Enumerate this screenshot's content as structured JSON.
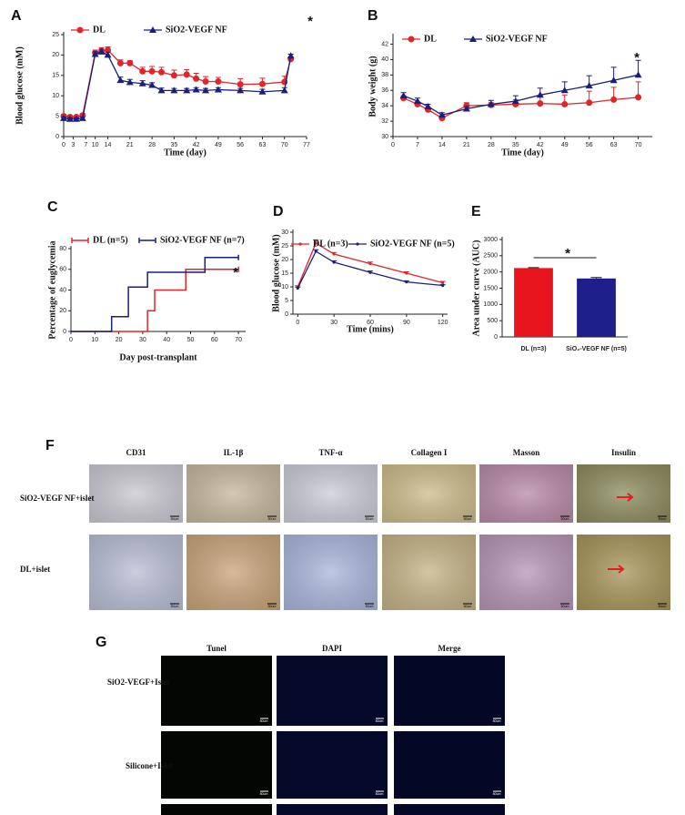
{
  "chart_data": [
    {
      "type": "line",
      "label": "A",
      "x_label": "Time (day)",
      "y_label": "Blood glucose (mM)",
      "xlim": [
        0,
        77
      ],
      "ylim": [
        0,
        25
      ],
      "xticks": [
        0,
        3,
        7,
        10,
        14,
        21,
        28,
        35,
        42,
        49,
        56,
        63,
        70,
        77
      ],
      "yticks": [
        0,
        5,
        10,
        15,
        20,
        25
      ],
      "x": [
        0,
        2,
        4,
        6,
        10,
        12,
        14,
        18,
        21,
        25,
        28,
        31,
        35,
        39,
        42,
        45,
        49,
        56,
        63,
        70,
        72
      ],
      "series": [
        {
          "name": "DL",
          "color": "#e0262a",
          "marker": "circle",
          "values": [
            5,
            4.8,
            4.8,
            5.2,
            20.5,
            21,
            21.2,
            18,
            18,
            16,
            16,
            15.8,
            15,
            15.2,
            14.2,
            13.5,
            13.5,
            12.8,
            12.9,
            13.4,
            19
          ],
          "errors": [
            0.4,
            0.3,
            0.3,
            0.4,
            0.7,
            0.8,
            0.8,
            0.8,
            0.6,
            1,
            1.2,
            1.2,
            1.3,
            1.2,
            1.3,
            1.2,
            1,
            1.4,
            1.4,
            1.4,
            0.5
          ]
        },
        {
          "name": "SiO2-VEGF NF",
          "color": "#1a1f7a",
          "marker": "triangle",
          "values": [
            4.5,
            4.3,
            4.3,
            4.5,
            20.2,
            20.8,
            20,
            13.8,
            13.3,
            13,
            12.6,
            11.3,
            11.3,
            11.3,
            11.5,
            11.3,
            11.5,
            11.3,
            11,
            11.3,
            19.8
          ],
          "errors": [
            0.3,
            0.3,
            0.3,
            0.3,
            0.6,
            0.6,
            0.7,
            0.8,
            0.7,
            0.7,
            0.6,
            0.6,
            0.5,
            0.5,
            0.5,
            0.5,
            0.5,
            0.5,
            0.6,
            0.7,
            0.4
          ]
        }
      ],
      "annotations": [
        "*"
      ]
    },
    {
      "type": "line",
      "label": "B",
      "x_label": "Time (day)",
      "y_label": "Body weight (g)",
      "xlim": [
        0,
        74
      ],
      "ylim": [
        30,
        43
      ],
      "xticks": [
        0,
        7,
        14,
        21,
        28,
        35,
        42,
        49,
        56,
        63,
        70
      ],
      "yticks": [
        30,
        32,
        34,
        36,
        38,
        40,
        42
      ],
      "x": [
        3,
        7,
        10,
        14,
        21,
        28,
        35,
        42,
        49,
        56,
        63,
        70
      ],
      "series": [
        {
          "name": "DL",
          "color": "#e0262a",
          "marker": "circle",
          "values": [
            35,
            34.2,
            33.5,
            32.4,
            34,
            34.1,
            34.2,
            34.3,
            34.2,
            34.4,
            34.8,
            35.1
          ],
          "errors": [
            0.3,
            0.3,
            0.3,
            0.3,
            0.4,
            0.3,
            0.6,
            1,
            1.2,
            1.5,
            1.6,
            2
          ]
        },
        {
          "name": "SiO2-VEGF NF",
          "color": "#1a1f7a",
          "marker": "triangle",
          "values": [
            35.3,
            34.6,
            33.9,
            32.8,
            33.6,
            34.2,
            34.6,
            35.4,
            36,
            36.6,
            37.3,
            38
          ],
          "errors": [
            0.4,
            0.4,
            0.3,
            0.3,
            0.3,
            0.5,
            0.7,
            0.9,
            1.1,
            1.3,
            1.7,
            1.9
          ]
        }
      ],
      "annotations": [
        "*"
      ]
    },
    {
      "type": "step",
      "label": "C",
      "x_label": "Day post-transplant",
      "y_label": "Percentage  of euglycemia",
      "xlim": [
        0,
        73
      ],
      "ylim": [
        0,
        80
      ],
      "xticks": [
        0,
        10,
        20,
        30,
        40,
        50,
        60,
        70
      ],
      "yticks": [
        0,
        20,
        40,
        60,
        80
      ],
      "series": [
        {
          "name": "DL (n=5)",
          "color": "#e0262a",
          "x": [
            0,
            32,
            35,
            48,
            70
          ],
          "values": [
            0,
            20,
            40,
            60,
            60
          ]
        },
        {
          "name": "SiO2-VEGF NF (n=7)",
          "color": "#1a1f7a",
          "x": [
            0,
            17,
            24,
            32,
            56,
            70
          ],
          "values": [
            0,
            14.3,
            42.9,
            57.1,
            71.4,
            71.4
          ]
        }
      ],
      "annotations": [
        "*"
      ]
    },
    {
      "type": "line",
      "label": "D",
      "x_label": "Time (mins)",
      "y_label": "Blood glucose (mM)",
      "xlim": [
        -4,
        124
      ],
      "ylim": [
        0,
        30
      ],
      "xticks": [
        0,
        30,
        60,
        90,
        120
      ],
      "yticks": [
        0,
        5,
        10,
        15,
        20,
        25,
        30
      ],
      "x": [
        0,
        15,
        30,
        60,
        90,
        120
      ],
      "series": [
        {
          "name": "DL (n=3)",
          "color": "#e0262a",
          "marker": "dot",
          "values": [
            10,
            26,
            22,
            18.5,
            15,
            11.5
          ],
          "errors": [
            0.4,
            1.2,
            0.6,
            0.6,
            0.5,
            0.5
          ]
        },
        {
          "name": "SiO2-VEGF NF (n=5)",
          "color": "#1a1f7a",
          "marker": "dot",
          "values": [
            9.5,
            23,
            19,
            15.3,
            11.8,
            10.5
          ],
          "errors": [
            0.4,
            0.6,
            0.5,
            0.5,
            0.4,
            0.3
          ]
        }
      ],
      "annotations": []
    },
    {
      "type": "bar",
      "label": "E",
      "y_label": "Area under curve (AUC)",
      "ylim": [
        0,
        3000
      ],
      "yticks": [
        0,
        500,
        1000,
        1500,
        2000,
        2500,
        3000
      ],
      "categories": [
        "DL (n=3)",
        "SiO₂-VEGF NF (n=5)"
      ],
      "values": [
        2120,
        1800
      ],
      "errors": [
        15,
        30
      ],
      "colors": [
        "#e8141e",
        "#1f1f8c"
      ],
      "annotations": [
        "*"
      ]
    }
  ],
  "figure_f": {
    "label": "F",
    "columns": [
      "CD31",
      "IL-1β",
      "TNF-α",
      "Collagen I",
      "Masson",
      "Insulin"
    ],
    "rows": [
      "SiO2-VEGF NF+islet",
      "DL+islet"
    ],
    "scale_label": "50um"
  },
  "figure_g": {
    "label": "G",
    "columns": [
      "Tunel",
      "DAPI",
      "Merge"
    ],
    "rows": [
      "SiO2-VEGF+Islet",
      "Silicone+Islet"
    ],
    "scale_label": "50um"
  }
}
